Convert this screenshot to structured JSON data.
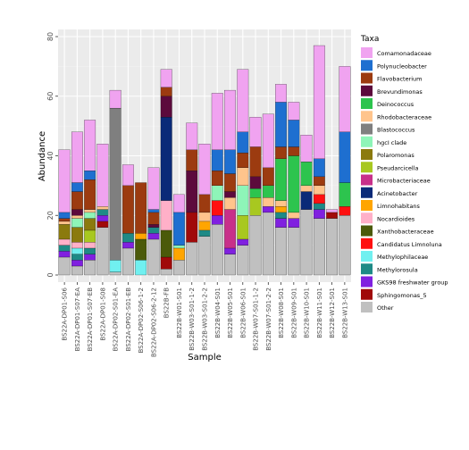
{
  "chart_data": {
    "type": "bar",
    "stacked": true,
    "xlabel": "Sample",
    "ylabel": "Abundance",
    "ylim": [
      0,
      80
    ],
    "yticks": [
      0,
      20,
      40,
      60,
      80
    ],
    "grid": true,
    "legend_placement": "right",
    "legend_title": "Taxa",
    "categories": [
      "BS22A-DP01-S06",
      "BS22A-DP01-S07-EA",
      "BS22A-DP01-S07-EB",
      "BS22A-DP01-S08",
      "BS22A-DP02-S01-EA",
      "BS22A-DP02-S01-EB",
      "BS22A-DP02-S06-1-2",
      "BS22A-DP02-S06-2-12",
      "BS22B-FB",
      "BS22B-W01-S01",
      "BS22B-W03-S01-1-2",
      "BS22B-W03-S01-2-2",
      "BS22B-W04-S01",
      "BS22B-W05-S01",
      "BS22B-W06-S01",
      "BS22B-W07-S01-1-2",
      "BS22B-W07-S01-2-2",
      "BS22B-W08-S01",
      "BS22B-W09-S01",
      "BS22B-W10-S01",
      "BS22B-W11-S01",
      "BS22B-W12-S01",
      "BS22B-W13-S01"
    ],
    "series": [
      {
        "name": "Comamonadaceae",
        "color": "#F0A3F0",
        "values": [
          21,
          17,
          17,
          21,
          6,
          7,
          0,
          14,
          6,
          6,
          9,
          17,
          19,
          20,
          21,
          10,
          18,
          6,
          6,
          9,
          38,
          1,
          22
        ]
      },
      {
        "name": "Polynucleobacter",
        "color": "#1E6FD0",
        "values": [
          2,
          3,
          3,
          0,
          0,
          0,
          0,
          1,
          0,
          11,
          0,
          0,
          7,
          8,
          7,
          0,
          0,
          15,
          9,
          0,
          6,
          0,
          17
        ]
      },
      {
        "name": "Flavobacterium",
        "color": "#9C3B10",
        "values": [
          1,
          6,
          10,
          0,
          0,
          16,
          17,
          4,
          3,
          0,
          7,
          6,
          5,
          6,
          5,
          10,
          6,
          4,
          3,
          0,
          3,
          0,
          0
        ]
      },
      {
        "name": "Brevundimonas",
        "color": "#5C0A3C",
        "values": [
          0,
          2,
          0,
          0,
          0,
          0,
          0,
          1,
          7,
          0,
          14,
          0,
          0,
          2,
          0,
          4,
          0,
          0,
          0,
          0,
          0,
          0,
          0
        ]
      },
      {
        "name": "Deinococcus",
        "color": "#2DC44E",
        "values": [
          0,
          0,
          0,
          0,
          0,
          0,
          0,
          0,
          0,
          0,
          0,
          0,
          0,
          0,
          0,
          3,
          4,
          14,
          19,
          8,
          0,
          0,
          8
        ]
      },
      {
        "name": "Rhodobacteraceae",
        "color": "#FFC48C",
        "values": [
          1,
          1,
          1,
          1,
          0,
          0,
          0,
          0,
          0,
          0,
          0,
          3,
          0,
          4,
          6,
          0,
          3,
          2,
          2,
          2,
          3,
          0,
          0
        ]
      },
      {
        "name": "Blastococcus",
        "color": "#7F7F7F",
        "values": [
          0,
          0,
          0,
          0,
          51,
          0,
          0,
          0,
          0,
          0,
          0,
          0,
          0,
          0,
          0,
          0,
          0,
          0,
          0,
          0,
          0,
          0,
          0
        ]
      },
      {
        "name": "hgcI clade",
        "color": "#8EF5B8",
        "values": [
          0,
          3,
          2,
          0,
          0,
          0,
          0,
          0,
          0,
          1,
          0,
          0,
          5,
          0,
          10,
          0,
          0,
          0,
          0,
          0,
          0,
          0,
          0
        ]
      },
      {
        "name": "Polaromonas",
        "color": "#8B7A0E",
        "values": [
          5,
          5,
          4,
          0,
          0,
          0,
          0,
          0,
          0,
          0,
          0,
          0,
          0,
          0,
          0,
          0,
          0,
          0,
          0,
          0,
          0,
          0,
          0
        ]
      },
      {
        "name": "Pseudarcicella",
        "color": "#A8C820",
        "values": [
          0,
          0,
          4,
          0,
          0,
          0,
          0,
          0,
          0,
          0,
          0,
          0,
          0,
          0,
          8,
          6,
          0,
          0,
          0,
          0,
          0,
          0,
          0
        ]
      },
      {
        "name": "Microbacteriaceae",
        "color": "#C8308A",
        "values": [
          0,
          0,
          0,
          0,
          0,
          0,
          0,
          0,
          0,
          0,
          0,
          0,
          0,
          13,
          0,
          0,
          0,
          0,
          0,
          0,
          0,
          0,
          0
        ]
      },
      {
        "name": "Acinetobacter",
        "color": "#0A2A78",
        "values": [
          0,
          0,
          0,
          0,
          0,
          0,
          0,
          0,
          28,
          0,
          0,
          0,
          0,
          0,
          0,
          0,
          0,
          0,
          0,
          6,
          0,
          0,
          0
        ]
      },
      {
        "name": "Limnohabitans",
        "color": "#FFA500",
        "values": [
          0,
          0,
          0,
          0,
          0,
          0,
          2,
          0,
          0,
          4,
          0,
          3,
          0,
          0,
          0,
          0,
          0,
          2,
          0,
          0,
          0,
          0,
          0
        ]
      },
      {
        "name": "Nocardioides",
        "color": "#FFB0C8",
        "values": [
          2,
          2,
          2,
          0,
          0,
          0,
          0,
          0,
          10,
          0,
          0,
          0,
          0,
          0,
          0,
          0,
          0,
          0,
          0,
          0,
          0,
          0,
          0
        ]
      },
      {
        "name": "Xanthobacteraceae",
        "color": "#4B5A0A",
        "values": [
          0,
          0,
          0,
          0,
          0,
          0,
          7,
          0,
          9,
          0,
          0,
          0,
          0,
          0,
          0,
          0,
          0,
          0,
          0,
          0,
          0,
          0,
          0
        ]
      },
      {
        "name": "Candidatus Limnoluna",
        "color": "#FF1010",
        "values": [
          0,
          0,
          0,
          0,
          0,
          0,
          0,
          0,
          0,
          0,
          0,
          0,
          5,
          0,
          0,
          0,
          0,
          0,
          0,
          0,
          3,
          0,
          3
        ]
      },
      {
        "name": "Methylophilaceae",
        "color": "#70F0F0",
        "values": [
          0,
          2,
          0,
          0,
          4,
          0,
          5,
          0,
          0,
          0,
          0,
          0,
          0,
          0,
          0,
          0,
          0,
          0,
          0,
          0,
          0,
          0,
          0
        ]
      },
      {
        "name": "Methylorosula",
        "color": "#1E8A86",
        "values": [
          2,
          2,
          2,
          2,
          0,
          3,
          0,
          2,
          0,
          0,
          0,
          2,
          0,
          0,
          0,
          0,
          0,
          2,
          0,
          0,
          2,
          0,
          0
        ]
      },
      {
        "name": "GKS98 freshwater group",
        "color": "#8020E0",
        "values": [
          2,
          2,
          2,
          2,
          0,
          2,
          0,
          2,
          0,
          0,
          0,
          0,
          3,
          2,
          2,
          0,
          2,
          3,
          3,
          0,
          3,
          0,
          0
        ]
      },
      {
        "name": "Sphingomonas_5",
        "color": "#A00A0A",
        "values": [
          0,
          0,
          0,
          2,
          0,
          0,
          0,
          0,
          4,
          0,
          10,
          0,
          0,
          0,
          0,
          0,
          0,
          0,
          0,
          0,
          0,
          2,
          0
        ]
      },
      {
        "name": "Other",
        "color": "#C0C0C0",
        "values": [
          6,
          3,
          5,
          16,
          1,
          9,
          0,
          12,
          2,
          5,
          11,
          13,
          17,
          7,
          10,
          20,
          21,
          16,
          16,
          22,
          19,
          19,
          20
        ]
      }
    ]
  }
}
